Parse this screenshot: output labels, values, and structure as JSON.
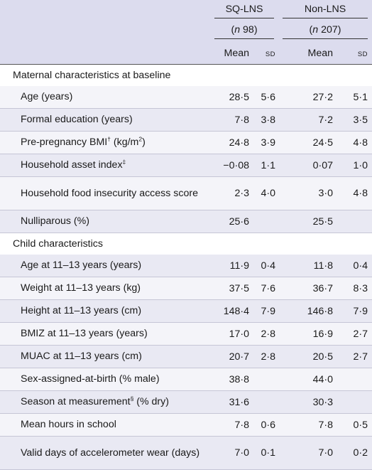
{
  "header": {
    "group1": "SQ-LNS",
    "group2": "Non-LNS",
    "n_prefix": "(",
    "n_symbol": "n",
    "n1": " 98)",
    "n2": " 207)",
    "mean_label": "Mean",
    "sd_label": "SD"
  },
  "sections": [
    {
      "title": "Maternal characteristics at baseline",
      "rows": [
        {
          "label": "Age (years)",
          "sup": "",
          "suffix": "",
          "m1": "28·5",
          "s1": "5·6",
          "m2": "27·2",
          "s2": "5·1"
        },
        {
          "label": "Formal education (years)",
          "sup": "",
          "suffix": "",
          "m1": "7·8",
          "s1": "3·8",
          "m2": "7·2",
          "s2": "3·5"
        },
        {
          "label": "Pre-pregnancy BMI",
          "sup": "†",
          "suffix": " (kg/m",
          "sup2": "2",
          "suffix2": ")",
          "m1": "24·8",
          "s1": "3·9",
          "m2": "24·5",
          "s2": "4·8"
        },
        {
          "label": "Household asset index",
          "sup": "‡",
          "suffix": "",
          "m1": "−0·08",
          "s1": "1·1",
          "m2": "0·07",
          "s2": "1·0"
        },
        {
          "label": "Household food insecurity access score",
          "sup": "",
          "suffix": "",
          "m1": "2·3",
          "s1": "4·0",
          "m2": "3·0",
          "s2": "4·8"
        },
        {
          "label": "Nulliparous (%)",
          "sup": "",
          "suffix": "",
          "m1": "25·6",
          "s1": "",
          "m2": "25·5",
          "s2": ""
        }
      ]
    },
    {
      "title": "Child characteristics",
      "rows": [
        {
          "label": "Age at 11–13 years (years)",
          "sup": "",
          "suffix": "",
          "m1": "11·9",
          "s1": "0·4",
          "m2": "11·8",
          "s2": "0·4"
        },
        {
          "label": "Weight at 11–13 years (kg)",
          "sup": "",
          "suffix": "",
          "m1": "37·5",
          "s1": "7·6",
          "m2": "36·7",
          "s2": "8·3"
        },
        {
          "label": "Height at 11–13 years (cm)",
          "sup": "",
          "suffix": "",
          "m1": "148·4",
          "s1": "7·9",
          "m2": "146·8",
          "s2": "7·9"
        },
        {
          "label": "BMIZ at 11–13 years (years)",
          "sup": "",
          "suffix": "",
          "m1": "17·0",
          "s1": "2·8",
          "m2": "16·9",
          "s2": "2·7"
        },
        {
          "label": "MUAC at 11–13 years (cm)",
          "sup": "",
          "suffix": "",
          "m1": "20·7",
          "s1": "2·8",
          "m2": "20·5",
          "s2": "2·7"
        },
        {
          "label": "Sex-assigned-at-birth (% male)",
          "sup": "",
          "suffix": "",
          "m1": "38·8",
          "s1": "",
          "m2": "44·0",
          "s2": ""
        },
        {
          "label": "Season at measurement",
          "sup": "§",
          "suffix": " (% dry)",
          "m1": "31·6",
          "s1": "",
          "m2": "30·3",
          "s2": ""
        },
        {
          "label": "Mean hours in school",
          "sup": "",
          "suffix": "",
          "m1": "7·8",
          "s1": "0·6",
          "m2": "7·8",
          "s2": "0·5"
        },
        {
          "label": "Valid days of accelerometer wear (days)",
          "sup": "",
          "suffix": "",
          "m1": "7·0",
          "s1": "0·1",
          "m2": "7·0",
          "s2": "0·2"
        }
      ]
    }
  ]
}
